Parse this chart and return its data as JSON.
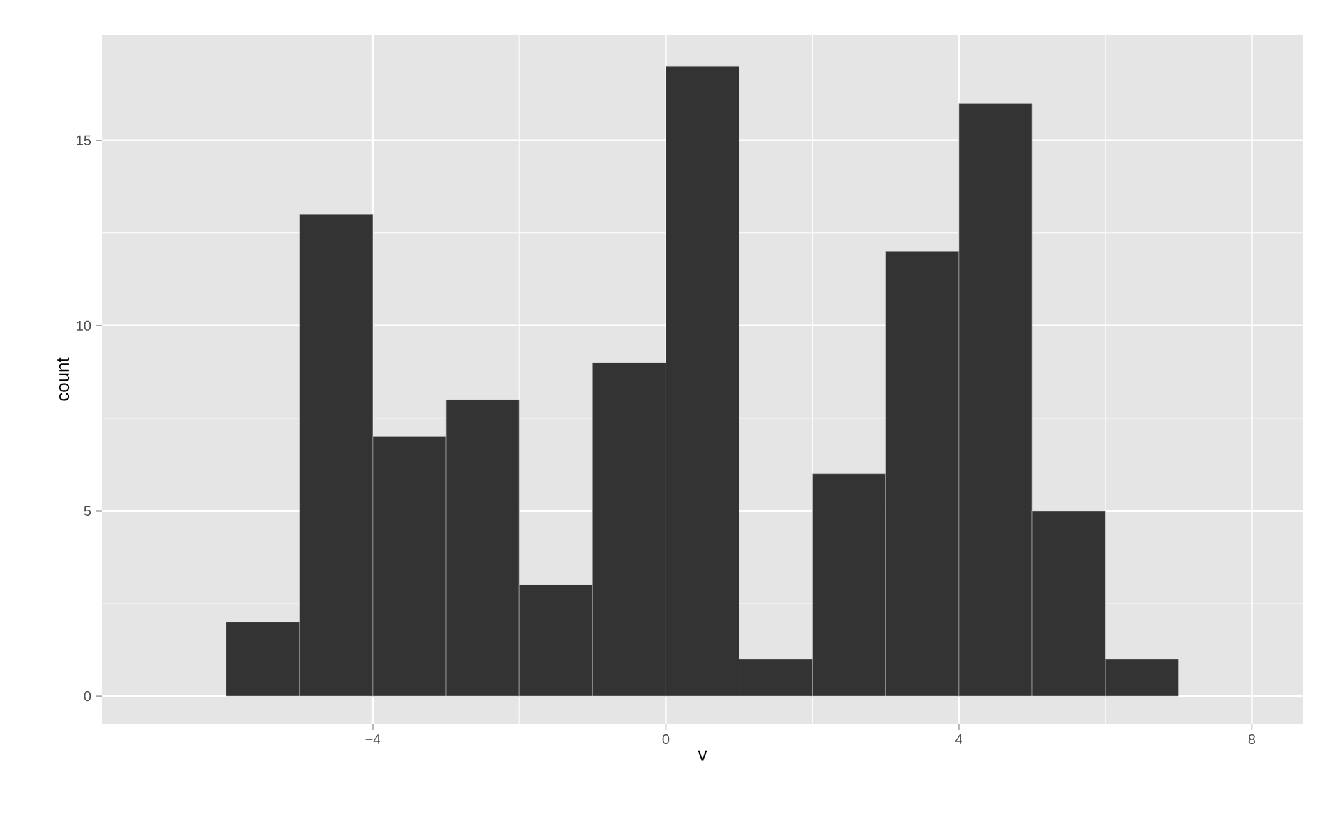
{
  "chart_data": {
    "type": "histogram",
    "xlabel": "v",
    "ylabel": "count",
    "bins": [
      -6,
      -5,
      -4,
      -3,
      -2,
      -1,
      0,
      1,
      2,
      3,
      4,
      5,
      6,
      7
    ],
    "values": [
      2,
      13,
      7,
      8,
      3,
      9,
      17,
      1,
      6,
      12,
      16,
      5,
      1
    ],
    "color": "#333333",
    "xlim": [
      -7.7,
      8.7
    ],
    "ylim": [
      -0.75,
      17.85
    ],
    "xticks": [
      {
        "value": -4,
        "label": "−4"
      },
      0,
      4,
      8
    ],
    "yticks": [
      0,
      5,
      10,
      15
    ],
    "grid": true
  }
}
